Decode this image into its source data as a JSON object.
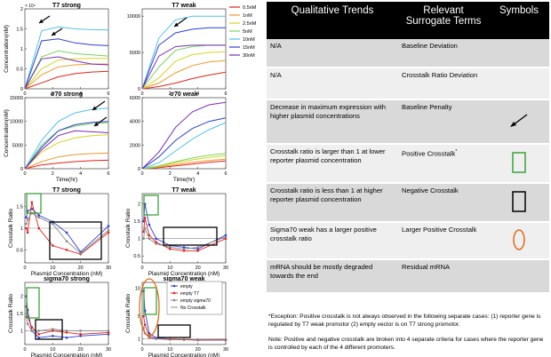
{
  "colors": {
    "c0_5": "#e0231b",
    "c1": "#ec9a2a",
    "c2_5": "#d8d41e",
    "c5": "#79d45e",
    "c10": "#4ec3e8",
    "c15": "#2a3fd0",
    "c30": "#7b2bb8",
    "empty": "#2a3fd0",
    "emptyT7": "#e0231b",
    "emptySig": "#888888",
    "green": "#3aa33a",
    "orange": "#e06a1b"
  },
  "figure": {
    "legend_concentrations": [
      "0.5nM",
      "1nM",
      "2.5nM",
      "5nM",
      "10nM",
      "15nM",
      "30nM"
    ],
    "panels": [
      {
        "id": "t7s",
        "title": "T7 strong",
        "ylabel": "Concentration(nM)",
        "xlabel": "Time(hr)",
        "xticks": [
          "0",
          "2",
          "4",
          "6"
        ],
        "yticks": [
          "0",
          "0.5",
          "1",
          "1.5",
          "2"
        ],
        "exp": "× 10⁴",
        "xmax": 6,
        "ymax": 2,
        "series": [
          [
            0,
            0.15,
            0.3,
            0.38,
            0.42,
            0.44
          ],
          [
            0,
            0.35,
            0.55,
            0.6,
            0.62,
            0.62
          ],
          [
            0,
            0.5,
            0.72,
            0.75,
            0.76,
            0.76
          ],
          [
            0,
            0.8,
            0.95,
            0.88,
            0.85,
            0.82
          ],
          [
            0,
            1.45,
            1.55,
            1.5,
            1.48,
            1.47
          ],
          [
            0,
            1.2,
            1.25,
            1.15,
            1.1,
            1.08
          ],
          [
            0,
            0.75,
            0.8,
            0.7,
            0.62,
            0.6
          ]
        ]
      },
      {
        "id": "t7w",
        "title": "T7 weak",
        "ylabel": "",
        "xlabel": "Time(hr)",
        "xticks": [
          "0",
          "2",
          "4",
          "6"
        ],
        "yticks": [
          "0",
          "5000",
          "10000"
        ],
        "xmax": 6,
        "ymax": 11000,
        "series": [
          [
            0,
            300,
            800,
            1400,
            1900,
            2300
          ],
          [
            0,
            800,
            2200,
            3200,
            3700,
            3900
          ],
          [
            0,
            1500,
            3800,
            4700,
            5000,
            5100
          ],
          [
            0,
            3000,
            5300,
            5800,
            6000,
            6000
          ],
          [
            0,
            7000,
            9500,
            10000,
            10000,
            10000
          ],
          [
            0,
            6000,
            7700,
            8200,
            8400,
            8400
          ],
          [
            0,
            4500,
            5800,
            6000,
            6000,
            6000
          ]
        ]
      },
      {
        "id": "s70s",
        "title": "σ70 strong",
        "ylabel": "Concentration(nM)",
        "xlabel": "Time(hr)",
        "xticks": [
          "0",
          "2",
          "4",
          "6"
        ],
        "yticks": [
          "0",
          "5000",
          "10000",
          "15000"
        ],
        "xmax": 6,
        "ymax": 15000,
        "series": [
          [
            0,
            800,
            1200,
            1500,
            1700,
            1800
          ],
          [
            0,
            1500,
            2500,
            3000,
            3200,
            3300
          ],
          [
            0,
            3500,
            5500,
            6500,
            7000,
            7200
          ],
          [
            0,
            5000,
            8000,
            9000,
            9500,
            9700
          ],
          [
            0,
            6000,
            10000,
            11800,
            12500,
            12800
          ],
          [
            0,
            4500,
            8000,
            9300,
            9800,
            10000
          ],
          [
            0,
            4000,
            7000,
            8000,
            7800,
            7600
          ]
        ]
      },
      {
        "id": "s70w",
        "title": "σ70 weak",
        "ylabel": "",
        "xlabel": "Time(hr)",
        "xticks": [
          "0",
          "2",
          "4",
          "6"
        ],
        "yticks": [
          "0",
          "2000",
          "4000",
          "6000"
        ],
        "xmax": 6,
        "ymax": 6000,
        "series": [
          [
            0,
            100,
            250,
            400,
            550,
            650
          ],
          [
            0,
            150,
            350,
            550,
            700,
            800
          ],
          [
            0,
            200,
            500,
            750,
            950,
            1100
          ],
          [
            0,
            250,
            600,
            900,
            1150,
            1300
          ],
          [
            0,
            500,
            1500,
            2500,
            3300,
            3900
          ],
          [
            0,
            1000,
            2400,
            3400,
            4000,
            4300
          ],
          [
            0,
            1400,
            3500,
            4800,
            5400,
            5600
          ]
        ]
      },
      {
        "id": "ct7s",
        "title": "T7 strong",
        "ylabel": "Crosstalk Ratio",
        "xlabel": "Plasmid Concentration (nM)",
        "xticks": [
          "0",
          "10",
          "20",
          "30"
        ],
        "yticks": [
          "0.5",
          "1",
          "1.5"
        ],
        "xmax": 30,
        "ymin": 0.2,
        "ymax": 1.8,
        "series": [
          [
            0.5,
            1.25,
            1,
            1.4,
            2.5,
            1.45,
            5,
            1.3,
            10,
            1.15,
            15,
            0.9,
            20,
            0.45,
            30,
            1.05
          ],
          [
            0.5,
            1.0,
            1,
            0.9,
            2.5,
            1.6,
            5,
            1.0,
            10,
            0.6,
            15,
            0.5,
            20,
            0.4,
            30,
            0.9
          ],
          [
            0.5,
            1.1,
            1,
            1.2,
            2.5,
            1.35,
            5,
            1.25,
            10,
            1.1,
            15,
            0.7,
            20,
            0.42,
            30,
            0.95
          ]
        ]
      },
      {
        "id": "ct7w",
        "title": "T7 weak",
        "ylabel": "Crosstalk Ratio",
        "xlabel": "Plasmid Concentration (nM)",
        "xticks": [
          "0",
          "10",
          "20",
          "30"
        ],
        "yticks": [
          "0.5",
          "1",
          "1.5",
          "2"
        ],
        "xmax": 30,
        "ymin": 0.3,
        "ymax": 2.3,
        "series": [
          [
            0.5,
            1.5,
            1,
            2.0,
            2.5,
            1.4,
            5,
            1.0,
            10,
            0.8,
            15,
            0.75,
            20,
            0.7,
            30,
            1.1
          ],
          [
            0.5,
            1.2,
            1,
            1.6,
            2.5,
            1.1,
            5,
            0.9,
            10,
            0.7,
            15,
            0.65,
            20,
            0.65,
            30,
            1.0
          ],
          [
            0.5,
            1.0,
            1,
            1.3,
            2.5,
            1.0,
            5,
            0.85,
            10,
            0.75,
            15,
            0.7,
            20,
            0.75,
            30,
            1.05
          ]
        ]
      },
      {
        "id": "cs7s",
        "title": "sigma70 strong",
        "ylabel": "Crosstalk Ratio",
        "xlabel": "Plasmid Concentration (nM)",
        "xticks": [
          "0",
          "10",
          "20",
          "30"
        ],
        "yticks": [
          "1",
          "1.5",
          "2"
        ],
        "xmax": 30,
        "ymin": 0.6,
        "ymax": 2.4,
        "series": [
          [
            0.5,
            2.0,
            1,
            1.6,
            2.5,
            1.0,
            5,
            0.8,
            10,
            0.85,
            15,
            0.8,
            20,
            0.85,
            30,
            0.9
          ],
          [
            0.5,
            1.7,
            1,
            1.4,
            2.5,
            1.1,
            5,
            0.9,
            10,
            1.0,
            15,
            0.95,
            20,
            0.9,
            30,
            0.95
          ],
          [
            0.5,
            1.4,
            1,
            1.2,
            2.5,
            1.0,
            5,
            1.0,
            10,
            1.05,
            15,
            1.0,
            20,
            1.0,
            30,
            1.0
          ]
        ]
      },
      {
        "id": "cs7w",
        "title": "sigma70 weak",
        "ylabel": "Crosstalk Ratio",
        "xlabel": "Plasmid Concentration (nM)",
        "xticks": [
          "0",
          "10",
          "20",
          "30"
        ],
        "yticks": [
          "1",
          "5",
          "10"
        ],
        "xmax": 30,
        "ymin": 0,
        "ymax": 11,
        "series": [
          [
            0.5,
            9.5,
            1,
            6.0,
            2.5,
            2.0,
            5,
            1.2,
            10,
            1.0,
            15,
            0.9,
            20,
            0.8,
            30,
            0.8
          ],
          [
            0.5,
            5.0,
            1,
            3.5,
            2.5,
            1.5,
            5,
            1.0,
            10,
            0.9,
            15,
            0.85,
            20,
            0.8,
            30,
            0.85
          ],
          [
            0.5,
            3.0,
            1,
            2.0,
            2.5,
            1.2,
            5,
            1.0,
            10,
            1.0,
            15,
            0.95,
            20,
            0.9,
            30,
            0.95
          ]
        ]
      }
    ],
    "crosstalk_legend": [
      "empty",
      "empty T7",
      "empty sigma70",
      "No Crosstalk"
    ]
  },
  "table": {
    "headers": [
      "Qualitative Trends",
      "Relevant Surrogate Terms",
      "Symbols"
    ],
    "rows": [
      {
        "trend": "N/A",
        "term": "Baseline Deviation",
        "symbol": ""
      },
      {
        "trend": "N/A",
        "term": "Crosstalk Ratio Deviation",
        "symbol": ""
      },
      {
        "trend": "Decrease in maximum expression with higher plasmid concentrations",
        "term": "Baseline Penalty",
        "symbol": "arrow"
      },
      {
        "trend": "Crosstalk ratio is larger than 1 at lower reporter plasmid concentration",
        "term": "Positive Crosstalk",
        "term_sup": "*",
        "symbol": "green-rect"
      },
      {
        "trend": "Crosstalk ratio is less than 1 at higher reporter plasmid concentration",
        "term": "Negative Crosstalk",
        "symbol": "black-rect"
      },
      {
        "trend": "Sigma70 weak has a larger positive crosstalk ratio",
        "term": "Larger Positive Crosstalk",
        "symbol": "orange-oval"
      },
      {
        "trend": "mRNA should be mostly degraded towards the end",
        "term": "Residual mRNA",
        "symbol": ""
      }
    ],
    "footnote": "*Exception: Positive crosstalk is not always observed in the following separate cases: (1) reporter gene is regulated by T7 weak promotor (2) empty vector is on T7 strong promotor.",
    "note": "Note: Positive and negative crosstalk are broken into 4 separate criteria for cases where the reporter gene is controlled by each of the 4 different promoters."
  }
}
